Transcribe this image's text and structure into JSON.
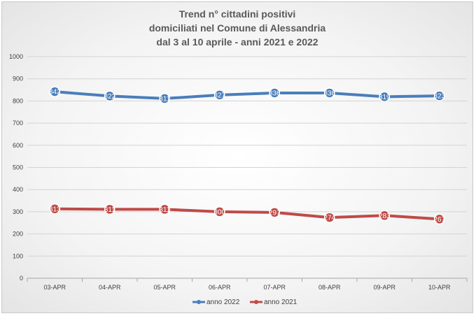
{
  "chart_data": {
    "type": "line",
    "title": [
      "Trend n° cittadini positivi",
      "domiciliati nel Comune di Alessandria",
      "dal 3 al 10 aprile - anni 2021 e 2022"
    ],
    "categories": [
      "03-APR",
      "04-APR",
      "05-APR",
      "06-APR",
      "07-APR",
      "08-APR",
      "09-APR",
      "10-APR"
    ],
    "ylim": [
      0,
      1000
    ],
    "yticks": [
      0,
      100,
      200,
      300,
      400,
      500,
      600,
      700,
      800,
      900,
      1000
    ],
    "grid": true,
    "legend_position": "bottom",
    "series": [
      {
        "name": "anno 2022",
        "color": "#4a7ebb",
        "values": [
          842,
          822,
          811,
          827,
          836,
          836,
          819,
          823
        ]
      },
      {
        "name": "anno 2021",
        "color": "#be4b48",
        "values": [
          313,
          311,
          311,
          300,
          297,
          274,
          283,
          267
        ]
      }
    ]
  }
}
